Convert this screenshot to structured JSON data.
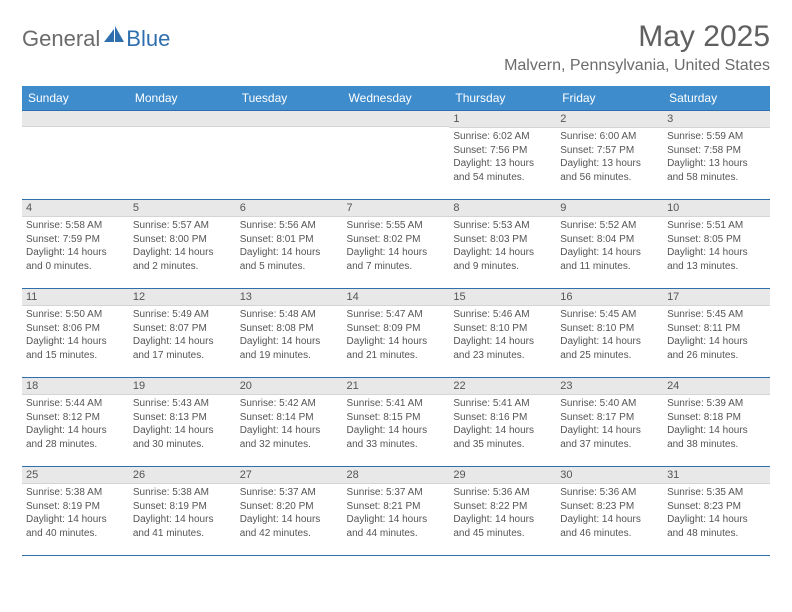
{
  "logo": {
    "general": "General",
    "blue": "Blue"
  },
  "title": {
    "month": "May 2025",
    "location": "Malvern, Pennsylvania, United States"
  },
  "dow": [
    "Sunday",
    "Monday",
    "Tuesday",
    "Wednesday",
    "Thursday",
    "Friday",
    "Saturday"
  ],
  "colors": {
    "header_bg": "#3f8ccc",
    "header_border": "#2f6fae",
    "logo_gray": "#6b6b6b",
    "logo_blue": "#2f6fae",
    "daynum_bg": "#e8e8e8",
    "text": "#555555"
  },
  "weeks": [
    [
      null,
      null,
      null,
      null,
      {
        "n": "1",
        "sr": "Sunrise: 6:02 AM",
        "ss": "Sunset: 7:56 PM",
        "d1": "Daylight: 13 hours",
        "d2": "and 54 minutes."
      },
      {
        "n": "2",
        "sr": "Sunrise: 6:00 AM",
        "ss": "Sunset: 7:57 PM",
        "d1": "Daylight: 13 hours",
        "d2": "and 56 minutes."
      },
      {
        "n": "3",
        "sr": "Sunrise: 5:59 AM",
        "ss": "Sunset: 7:58 PM",
        "d1": "Daylight: 13 hours",
        "d2": "and 58 minutes."
      }
    ],
    [
      {
        "n": "4",
        "sr": "Sunrise: 5:58 AM",
        "ss": "Sunset: 7:59 PM",
        "d1": "Daylight: 14 hours",
        "d2": "and 0 minutes."
      },
      {
        "n": "5",
        "sr": "Sunrise: 5:57 AM",
        "ss": "Sunset: 8:00 PM",
        "d1": "Daylight: 14 hours",
        "d2": "and 2 minutes."
      },
      {
        "n": "6",
        "sr": "Sunrise: 5:56 AM",
        "ss": "Sunset: 8:01 PM",
        "d1": "Daylight: 14 hours",
        "d2": "and 5 minutes."
      },
      {
        "n": "7",
        "sr": "Sunrise: 5:55 AM",
        "ss": "Sunset: 8:02 PM",
        "d1": "Daylight: 14 hours",
        "d2": "and 7 minutes."
      },
      {
        "n": "8",
        "sr": "Sunrise: 5:53 AM",
        "ss": "Sunset: 8:03 PM",
        "d1": "Daylight: 14 hours",
        "d2": "and 9 minutes."
      },
      {
        "n": "9",
        "sr": "Sunrise: 5:52 AM",
        "ss": "Sunset: 8:04 PM",
        "d1": "Daylight: 14 hours",
        "d2": "and 11 minutes."
      },
      {
        "n": "10",
        "sr": "Sunrise: 5:51 AM",
        "ss": "Sunset: 8:05 PM",
        "d1": "Daylight: 14 hours",
        "d2": "and 13 minutes."
      }
    ],
    [
      {
        "n": "11",
        "sr": "Sunrise: 5:50 AM",
        "ss": "Sunset: 8:06 PM",
        "d1": "Daylight: 14 hours",
        "d2": "and 15 minutes."
      },
      {
        "n": "12",
        "sr": "Sunrise: 5:49 AM",
        "ss": "Sunset: 8:07 PM",
        "d1": "Daylight: 14 hours",
        "d2": "and 17 minutes."
      },
      {
        "n": "13",
        "sr": "Sunrise: 5:48 AM",
        "ss": "Sunset: 8:08 PM",
        "d1": "Daylight: 14 hours",
        "d2": "and 19 minutes."
      },
      {
        "n": "14",
        "sr": "Sunrise: 5:47 AM",
        "ss": "Sunset: 8:09 PM",
        "d1": "Daylight: 14 hours",
        "d2": "and 21 minutes."
      },
      {
        "n": "15",
        "sr": "Sunrise: 5:46 AM",
        "ss": "Sunset: 8:10 PM",
        "d1": "Daylight: 14 hours",
        "d2": "and 23 minutes."
      },
      {
        "n": "16",
        "sr": "Sunrise: 5:45 AM",
        "ss": "Sunset: 8:10 PM",
        "d1": "Daylight: 14 hours",
        "d2": "and 25 minutes."
      },
      {
        "n": "17",
        "sr": "Sunrise: 5:45 AM",
        "ss": "Sunset: 8:11 PM",
        "d1": "Daylight: 14 hours",
        "d2": "and 26 minutes."
      }
    ],
    [
      {
        "n": "18",
        "sr": "Sunrise: 5:44 AM",
        "ss": "Sunset: 8:12 PM",
        "d1": "Daylight: 14 hours",
        "d2": "and 28 minutes."
      },
      {
        "n": "19",
        "sr": "Sunrise: 5:43 AM",
        "ss": "Sunset: 8:13 PM",
        "d1": "Daylight: 14 hours",
        "d2": "and 30 minutes."
      },
      {
        "n": "20",
        "sr": "Sunrise: 5:42 AM",
        "ss": "Sunset: 8:14 PM",
        "d1": "Daylight: 14 hours",
        "d2": "and 32 minutes."
      },
      {
        "n": "21",
        "sr": "Sunrise: 5:41 AM",
        "ss": "Sunset: 8:15 PM",
        "d1": "Daylight: 14 hours",
        "d2": "and 33 minutes."
      },
      {
        "n": "22",
        "sr": "Sunrise: 5:41 AM",
        "ss": "Sunset: 8:16 PM",
        "d1": "Daylight: 14 hours",
        "d2": "and 35 minutes."
      },
      {
        "n": "23",
        "sr": "Sunrise: 5:40 AM",
        "ss": "Sunset: 8:17 PM",
        "d1": "Daylight: 14 hours",
        "d2": "and 37 minutes."
      },
      {
        "n": "24",
        "sr": "Sunrise: 5:39 AM",
        "ss": "Sunset: 8:18 PM",
        "d1": "Daylight: 14 hours",
        "d2": "and 38 minutes."
      }
    ],
    [
      {
        "n": "25",
        "sr": "Sunrise: 5:38 AM",
        "ss": "Sunset: 8:19 PM",
        "d1": "Daylight: 14 hours",
        "d2": "and 40 minutes."
      },
      {
        "n": "26",
        "sr": "Sunrise: 5:38 AM",
        "ss": "Sunset: 8:19 PM",
        "d1": "Daylight: 14 hours",
        "d2": "and 41 minutes."
      },
      {
        "n": "27",
        "sr": "Sunrise: 5:37 AM",
        "ss": "Sunset: 8:20 PM",
        "d1": "Daylight: 14 hours",
        "d2": "and 42 minutes."
      },
      {
        "n": "28",
        "sr": "Sunrise: 5:37 AM",
        "ss": "Sunset: 8:21 PM",
        "d1": "Daylight: 14 hours",
        "d2": "and 44 minutes."
      },
      {
        "n": "29",
        "sr": "Sunrise: 5:36 AM",
        "ss": "Sunset: 8:22 PM",
        "d1": "Daylight: 14 hours",
        "d2": "and 45 minutes."
      },
      {
        "n": "30",
        "sr": "Sunrise: 5:36 AM",
        "ss": "Sunset: 8:23 PM",
        "d1": "Daylight: 14 hours",
        "d2": "and 46 minutes."
      },
      {
        "n": "31",
        "sr": "Sunrise: 5:35 AM",
        "ss": "Sunset: 8:23 PM",
        "d1": "Daylight: 14 hours",
        "d2": "and 48 minutes."
      }
    ]
  ]
}
